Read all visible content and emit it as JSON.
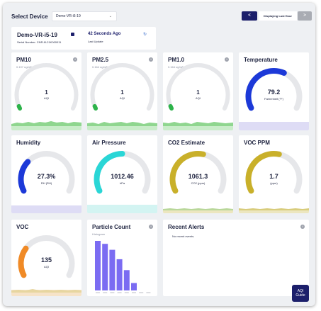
{
  "header": {
    "select_label": "Select Device",
    "device_value": "Demo-VR-i5-19",
    "prev_label": "<",
    "range_label": "Displaying Last Hour",
    "next_label": ">"
  },
  "device": {
    "name": "Demo-VR-i5-19",
    "serial": "Serial Number: CNR-i5-21K000011",
    "last_update": "42 Seconds Ago",
    "last_update_label": "Last Update"
  },
  "cards": {
    "pm10": {
      "title": "PM10",
      "sub": "0.197 ug/m³",
      "value": "1",
      "unit": "AQI",
      "level": 0.02,
      "color": "#2db34a"
    },
    "pm25": {
      "title": "PM2.5",
      "sub": "0.164 ug/m³",
      "value": "1",
      "unit": "AQI",
      "level": 0.02,
      "color": "#2db34a"
    },
    "pm10b": {
      "title": "PM1.0",
      "sub": "0.164 ug/m³",
      "value": "1",
      "unit": "AQI",
      "level": 0.02,
      "color": "#2db34a"
    },
    "temperature": {
      "title": "Temperature",
      "value": "79.2",
      "unit": "Fahrenheit (°F)",
      "level": 0.6,
      "color": "#1c39d8"
    },
    "humidity": {
      "title": "Humidity",
      "value": "27.3%",
      "unit": "RH (RH)",
      "level": 0.3,
      "color": "#1c39d8"
    },
    "pressure": {
      "title": "Air Pressure",
      "value": "1012.46",
      "unit": "hPa",
      "level": 0.5,
      "color": "#2ad6d6"
    },
    "co2": {
      "title": "CO2 Estimate",
      "value": "1061.3",
      "unit": "CO2 (ppm)",
      "level": 0.55,
      "color": "#c9b02a"
    },
    "vocppm": {
      "title": "VOC PPM",
      "value": "1.7",
      "unit": "(ppm)",
      "level": 0.55,
      "color": "#c9b02a"
    },
    "voc": {
      "title": "VOC",
      "value": "135",
      "unit": "AQI",
      "level": 0.27,
      "color": "#f08a26"
    }
  },
  "particle": {
    "title": "Particle Count",
    "sub": "Histogram"
  },
  "alerts": {
    "title": "Recent Alerts",
    "empty": "No recent events."
  },
  "aqi_guide": {
    "line1": "AQI",
    "line2": "Guide"
  },
  "chart_data": {
    "type": "bar",
    "categories": [
      "",
      "",
      "",
      "",
      "",
      "",
      "",
      ""
    ],
    "values": [
      100,
      94,
      82,
      63,
      41,
      15,
      0,
      0
    ],
    "ylim": [
      0,
      100
    ],
    "color": "#7b6cf2"
  }
}
